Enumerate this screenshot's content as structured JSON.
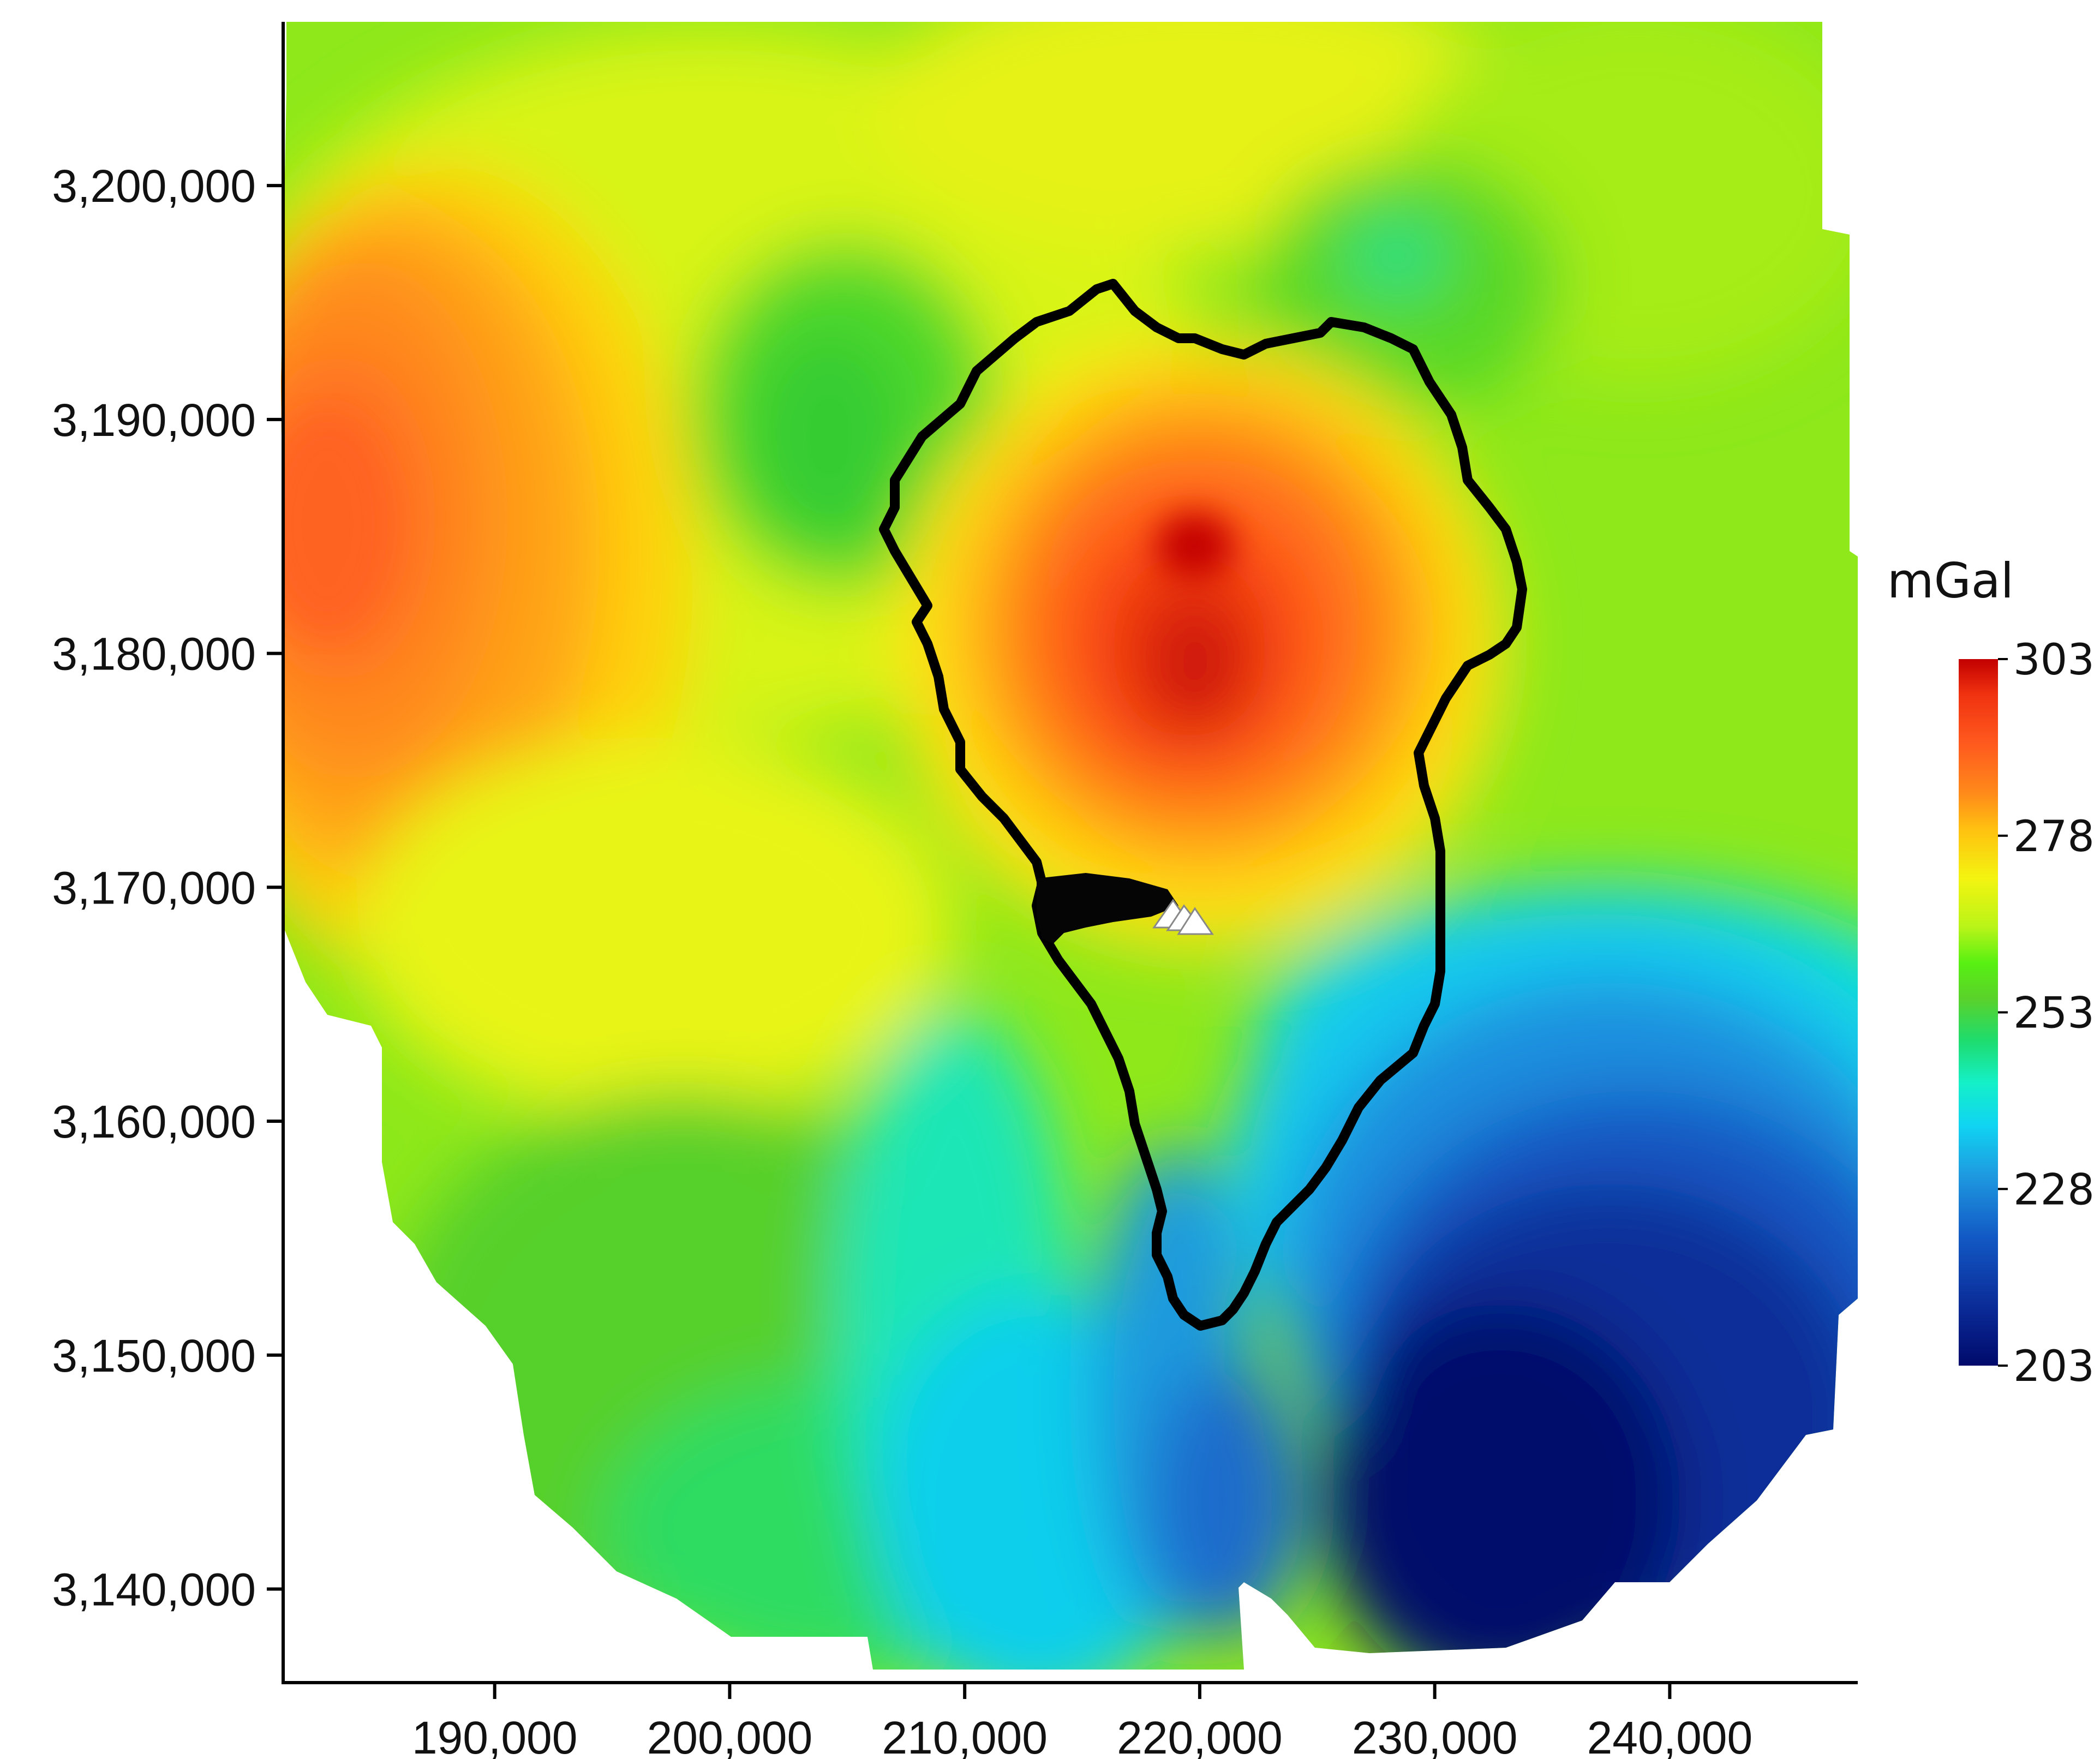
{
  "map": {
    "x_ticks": [
      "190,000",
      "200,000",
      "210,000",
      "220,000",
      "230,000",
      "240,000"
    ],
    "y_ticks": [
      "3,200,000",
      "3,190,000",
      "3,180,000",
      "3,170,000",
      "3,160,000",
      "3,150,000",
      "3,140,000"
    ],
    "x_range": [
      181000,
      248000
    ],
    "y_range": [
      3136000,
      3207000
    ],
    "colorbar": {
      "unit": "mGal",
      "min": 203,
      "max": 303,
      "labels": [
        "303",
        "278",
        "253",
        "228",
        "203"
      ],
      "colors": [
        "#000a6b",
        "#0a2a96",
        "#1258c4",
        "#1e9ae0",
        "#10d4f2",
        "#14f0c8",
        "#1edc6e",
        "#5ad22a",
        "#58f012",
        "#b8f418",
        "#f4f410",
        "#ffc010",
        "#ff8a1a",
        "#ff5a1e",
        "#f03210",
        "#c20000"
      ]
    },
    "marker": "triangle"
  }
}
